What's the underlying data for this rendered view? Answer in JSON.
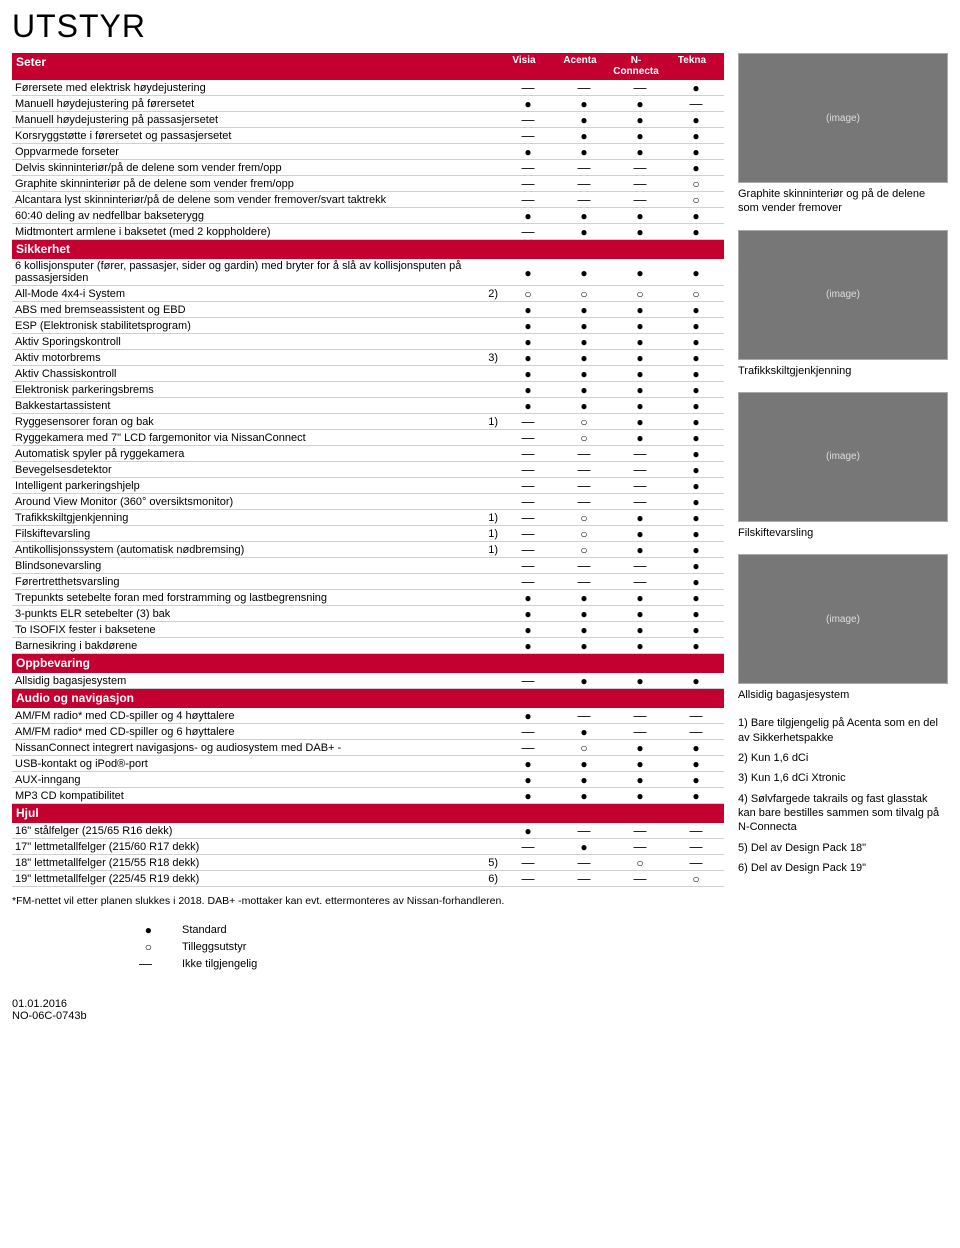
{
  "title": "UTSTYR",
  "trimCols": [
    "Visia",
    "Acenta",
    "N-Connecta",
    "Tekna"
  ],
  "sections": [
    {
      "name": "Seter",
      "rows": [
        {
          "f": "Førersete med elektrisk høydejustering",
          "v": [
            "—",
            "—",
            "—",
            "●"
          ]
        },
        {
          "f": "Manuell høydejustering på førersetet",
          "v": [
            "●",
            "●",
            "●",
            "—"
          ]
        },
        {
          "f": "Manuell høydejustering på passasjersetet",
          "v": [
            "—",
            "●",
            "●",
            "●"
          ]
        },
        {
          "f": "Korsryggstøtte i førersetet og passasjersetet",
          "v": [
            "—",
            "●",
            "●",
            "●"
          ]
        },
        {
          "f": "Oppvarmede forseter",
          "v": [
            "●",
            "●",
            "●",
            "●"
          ]
        },
        {
          "f": "Delvis skinninteriør/på de delene som vender frem/opp",
          "v": [
            "—",
            "—",
            "—",
            "●"
          ]
        },
        {
          "f": "Graphite skinninteriør på de delene som vender frem/opp",
          "v": [
            "—",
            "—",
            "—",
            "○"
          ]
        },
        {
          "f": "Alcantara lyst skinninteriør/på de delene som vender fremover/svart taktrekk",
          "v": [
            "—",
            "—",
            "—",
            "○"
          ]
        },
        {
          "f": "60:40 deling av nedfellbar bakseterygg",
          "v": [
            "●",
            "●",
            "●",
            "●"
          ]
        },
        {
          "f": "Midtmontert armlene i baksetet (med 2 koppholdere)",
          "v": [
            "—",
            "●",
            "●",
            "●"
          ]
        }
      ]
    },
    {
      "name": "Sikkerhet",
      "rows": [
        {
          "f": "6 kollisjonsputer (fører, passasjer, sider og gardin) med bryter for å slå av kollisjonsputen på passasjersiden",
          "v": [
            "●",
            "●",
            "●",
            "●"
          ]
        },
        {
          "f": "All-Mode 4x4-i System",
          "n": "2)",
          "v": [
            "○",
            "○",
            "○",
            "○"
          ]
        },
        {
          "f": "ABS med bremseassistent og EBD",
          "v": [
            "●",
            "●",
            "●",
            "●"
          ]
        },
        {
          "f": "ESP (Elektronisk stabilitetsprogram)",
          "v": [
            "●",
            "●",
            "●",
            "●"
          ]
        },
        {
          "f": "Aktiv Sporingskontroll",
          "v": [
            "●",
            "●",
            "●",
            "●"
          ]
        },
        {
          "f": "Aktiv motorbrems",
          "n": "3)",
          "v": [
            "●",
            "●",
            "●",
            "●"
          ]
        },
        {
          "f": "Aktiv Chassiskontroll",
          "v": [
            "●",
            "●",
            "●",
            "●"
          ]
        },
        {
          "f": "Elektronisk parkeringsbrems",
          "v": [
            "●",
            "●",
            "●",
            "●"
          ]
        },
        {
          "f": "Bakkestartassistent",
          "v": [
            "●",
            "●",
            "●",
            "●"
          ]
        },
        {
          "f": "Ryggesensorer foran og bak",
          "n": "1)",
          "v": [
            "—",
            "○",
            "●",
            "●"
          ]
        },
        {
          "f": "Ryggekamera med 7\" LCD fargemonitor via NissanConnect",
          "v": [
            "—",
            "○",
            "●",
            "●"
          ]
        },
        {
          "f": "Automatisk spyler på ryggekamera",
          "v": [
            "—",
            "—",
            "—",
            "●"
          ]
        },
        {
          "f": "Bevegelsesdetektor",
          "v": [
            "—",
            "—",
            "—",
            "●"
          ]
        },
        {
          "f": "Intelligent parkeringshjelp",
          "v": [
            "—",
            "—",
            "—",
            "●"
          ]
        },
        {
          "f": "Around View Monitor (360° oversiktsmonitor)",
          "v": [
            "—",
            "—",
            "—",
            "●"
          ]
        },
        {
          "f": "Trafikkskiltgjenkjenning",
          "n": "1)",
          "v": [
            "—",
            "○",
            "●",
            "●"
          ]
        },
        {
          "f": "Filskiftevarsling",
          "n": "1)",
          "v": [
            "—",
            "○",
            "●",
            "●"
          ]
        },
        {
          "f": "Antikollisjonssystem (automatisk nødbremsing)",
          "n": "1)",
          "v": [
            "—",
            "○",
            "●",
            "●"
          ]
        },
        {
          "f": "Blindsonevarsling",
          "v": [
            "—",
            "—",
            "—",
            "●"
          ]
        },
        {
          "f": "Førertretthetsvarsling",
          "v": [
            "—",
            "—",
            "—",
            "●"
          ]
        },
        {
          "f": "Trepunkts setebelte foran med forstramming og lastbegrensning",
          "v": [
            "●",
            "●",
            "●",
            "●"
          ]
        },
        {
          "f": "3-punkts ELR setebelter (3) bak",
          "v": [
            "●",
            "●",
            "●",
            "●"
          ]
        },
        {
          "f": "To ISOFIX fester i baksetene",
          "v": [
            "●",
            "●",
            "●",
            "●"
          ]
        },
        {
          "f": "Barnesikring i bakdørene",
          "v": [
            "●",
            "●",
            "●",
            "●"
          ]
        }
      ]
    },
    {
      "name": "Oppbevaring",
      "rows": [
        {
          "f": "Allsidig bagasjesystem",
          "v": [
            "—",
            "●",
            "●",
            "●"
          ]
        }
      ]
    },
    {
      "name": "Audio og navigasjon",
      "rows": [
        {
          "f": "AM/FM radio* med CD-spiller og 4 høyttalere",
          "v": [
            "●",
            "—",
            "—",
            "—"
          ]
        },
        {
          "f": "AM/FM radio* med CD-spiller og 6 høyttalere",
          "v": [
            "—",
            "●",
            "—",
            "—"
          ]
        },
        {
          "f": "NissanConnect integrert navigasjons- og audiosystem med DAB+ -",
          "v": [
            "—",
            "○",
            "●",
            "●"
          ]
        },
        {
          "f": "USB-kontakt og iPod®-port",
          "v": [
            "●",
            "●",
            "●",
            "●"
          ]
        },
        {
          "f": "AUX-inngang",
          "v": [
            "●",
            "●",
            "●",
            "●"
          ]
        },
        {
          "f": "MP3 CD kompatibilitet",
          "v": [
            "●",
            "●",
            "●",
            "●"
          ]
        }
      ]
    },
    {
      "name": "Hjul",
      "rows": [
        {
          "f": "16\" stålfelger (215/65 R16 dekk)",
          "v": [
            "●",
            "—",
            "—",
            "—"
          ]
        },
        {
          "f": "17\" lettmetallfelger (215/60 R17 dekk)",
          "v": [
            "—",
            "●",
            "—",
            "—"
          ]
        },
        {
          "f": "18\" lettmetallfelger (215/55 R18 dekk)",
          "n": "5)",
          "v": [
            "—",
            "—",
            "○",
            "—"
          ]
        },
        {
          "f": "19\" lettmetallfelger (225/45 R19 dekk)",
          "n": "6)",
          "v": [
            "—",
            "—",
            "—",
            "○"
          ]
        }
      ]
    }
  ],
  "footnote": "*FM-nettet vil etter planen slukkes i 2018. DAB+ -mottaker kan evt. ettermonteres av Nissan-forhandleren.",
  "legend": [
    {
      "s": "●",
      "t": "Standard"
    },
    {
      "s": "○",
      "t": "Tilleggsutstyr"
    },
    {
      "s": "—",
      "t": "Ikke tilgjengelig"
    }
  ],
  "docDate": "01.01.2016",
  "docCode": "NO-06C-0743b",
  "sideImages": [
    {
      "cap": "Graphite skinninteriør og på de delene som vender fremover"
    },
    {
      "cap": "Trafikkskiltgjenkjenning"
    },
    {
      "cap": "Filskiftevarsling"
    },
    {
      "cap": "Allsidig bagasjesystem"
    }
  ],
  "sideNotes": [
    "1) Bare tilgjengelig på Acenta som en del av Sikkerhetspakke",
    "2) Kun 1,6 dCi",
    "3) Kun 1,6 dCi Xtronic",
    "4) Sølvfargede takrails og fast glasstak kan bare bestilles sammen som tilvalg på N-Connecta",
    "5) Del av Design Pack 18\"",
    "6) Del av Design Pack 19\""
  ]
}
